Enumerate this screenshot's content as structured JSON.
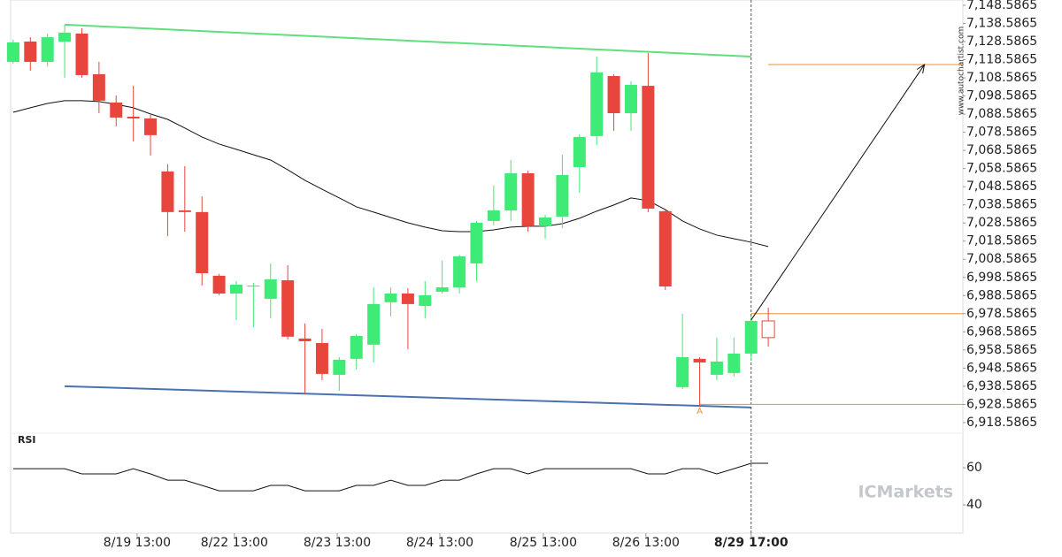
{
  "chart_data": [
    {
      "type": "candlestick",
      "x": [
        0,
        1,
        2,
        3,
        4,
        5,
        6,
        7,
        8,
        9,
        10,
        11,
        12,
        13,
        14,
        15,
        16,
        17,
        18,
        19,
        20,
        21,
        22,
        23,
        24,
        25,
        26,
        27,
        28,
        29,
        30,
        31,
        32,
        33,
        34,
        35,
        36,
        37,
        38,
        39,
        40,
        41,
        42,
        43,
        44
      ],
      "open": [
        7117.4,
        7128.6,
        7117.4,
        7128.6,
        7133.0,
        7110.6,
        7095.0,
        7087.2,
        7086.2,
        7057.0,
        7035.5,
        7034.6,
        6999.5,
        6989.7,
        6993.6,
        6986.8,
        6997.0,
        6964.9,
        6962.4,
        6944.9,
        6953.7,
        6961.5,
        6984.9,
        6989.7,
        6982.9,
        6990.7,
        6993.1,
        7006.3,
        7029.7,
        7035.5,
        7056.0,
        7026.8,
        7032.1,
        7059.4,
        7076.5,
        7109.6,
        7089.1,
        7104.2,
        7035.1,
        6938.1,
        6953.7,
        6944.9,
        6945.9,
        6956.6,
        6974.6
      ],
      "high": [
        7129.6,
        7131.0,
        7133.0,
        7137.9,
        7135.9,
        7117.4,
        7098.9,
        7104.2,
        7088.2,
        7060.9,
        7059.9,
        7043.3,
        7000.5,
        6996.6,
        6995.6,
        7006.3,
        7005.3,
        6973.2,
        6970.2,
        6954.6,
        6967.3,
        6993.1,
        6993.1,
        6992.7,
        6996.6,
        7007.8,
        7011.2,
        7029.7,
        7049.2,
        7063.3,
        7057.5,
        7033.1,
        7066.2,
        7077.4,
        7120.3,
        7110.6,
        7106.7,
        7122.3,
        7036.5,
        6978.5,
        6954.6,
        6965.4,
        6965.4,
        6977.1,
        6981.9
      ],
      "low": [
        7116.4,
        7112.5,
        7115.0,
        7108.6,
        7108.6,
        7089.1,
        7081.8,
        7073.5,
        7065.8,
        7021.4,
        7023.8,
        6994.1,
        6988.8,
        6975.1,
        6971.2,
        6976.1,
        6964.4,
        6934.7,
        6942.0,
        6936.1,
        6947.8,
        6951.7,
        6977.1,
        6959.0,
        6976.1,
        6989.7,
        6989.7,
        6996.6,
        7027.3,
        7029.7,
        7023.8,
        7019.9,
        7025.8,
        7045.3,
        7071.6,
        7079.4,
        7079.4,
        7034.6,
        6991.7,
        6937.1,
        6927.4,
        6942.0,
        6943.9,
        6952.7,
        6960.5
      ],
      "close": [
        7128.1,
        7117.4,
        7131.0,
        7133.5,
        7110.1,
        7096.0,
        7086.7,
        7086.2,
        7077.0,
        7034.6,
        7034.6,
        7000.9,
        6989.7,
        6994.6,
        6994.1,
        6997.5,
        6965.9,
        6963.4,
        6945.4,
        6953.2,
        6966.3,
        6983.9,
        6989.7,
        6983.9,
        6988.8,
        6993.1,
        7010.2,
        7028.7,
        7035.5,
        7056.0,
        7026.8,
        7031.6,
        7055.0,
        7076.0,
        7111.6,
        7089.1,
        7104.7,
        7036.5,
        6993.6,
        6954.6,
        6951.7,
        6952.2,
        6956.6,
        6974.6,
        6965.4
      ],
      "up_color": "#3deb76",
      "down_color": "#e8463c",
      "last_hollow": true,
      "ma": {
        "color": "#111111",
        "values": [
          7089.6,
          7092.1,
          7094.5,
          7096.0,
          7096.0,
          7095.5,
          7094.0,
          7092.1,
          7088.7,
          7085.7,
          7080.9,
          7076.0,
          7072.1,
          7069.2,
          7066.2,
          7063.3,
          7057.9,
          7052.1,
          7047.2,
          7042.4,
          7037.5,
          7034.6,
          7031.6,
          7028.7,
          7026.3,
          7024.3,
          7023.8,
          7023.8,
          7024.8,
          7026.3,
          7026.8,
          7026.8,
          7028.2,
          7031.2,
          7035.1,
          7038.5,
          7042.4,
          7040.9,
          7036.0,
          7029.7,
          7025.3,
          7021.9,
          7019.9,
          7018.0,
          7015.6
        ]
      },
      "lines": [
        {
          "color": "#5fe07d",
          "x": [
            3,
            43
          ],
          "values": [
            7137.9,
            7120.3
          ]
        },
        {
          "color": "#4a72b0",
          "x": [
            3,
            43
          ],
          "values": [
            6938.6,
            6926.9
          ]
        }
      ],
      "arrow": {
        "color": "#111111",
        "x": [
          43,
          53.1
        ],
        "values": [
          6975.1,
          7115.9
        ]
      },
      "levels": [
        {
          "color": "#e8923c",
          "x": [
            43,
            55.34
          ],
          "value": 6978.5865
        },
        {
          "color": "#e8923c",
          "x": [
            44,
            55.34
          ],
          "value": 7115.9
        },
        {
          "color": "#e8923c",
          "x": [
            40,
            55.34
          ],
          "value": 6928.5865
        }
      ],
      "vline": 43,
      "annotation": {
        "text": "A",
        "x": 40,
        "value": 6925.0
      },
      "watermark": "www.autochartist.com",
      "logo": "ICMarkets",
      "xlim": [
        -0.15,
        55.34
      ],
      "xticks": [
        {
          "value": 7.22,
          "label": "8/19 13:00"
        },
        {
          "value": 12.89,
          "label": "8/22 13:00"
        },
        {
          "value": 18.88,
          "label": "8/23 13:00"
        },
        {
          "value": 24.86,
          "label": "8/24 13:00"
        },
        {
          "value": 30.89,
          "label": "8/25 13:00"
        },
        {
          "value": 36.87,
          "label": "8/26 13:00"
        },
        {
          "value": 43,
          "label": "8/29 17:00"
        }
      ],
      "ylim": [
        6912.7,
        7151.5
      ],
      "yticks": [
        {
          "value": 7148.5865,
          "label": "7,148.5865"
        },
        {
          "value": 7138.5865,
          "label": "7,138.5865"
        },
        {
          "value": 7128.5865,
          "label": "7,128.5865"
        },
        {
          "value": 7118.5865,
          "label": "7,118.5865"
        },
        {
          "value": 7108.5865,
          "label": "7,108.5865"
        },
        {
          "value": 7098.5865,
          "label": "7,098.5865"
        },
        {
          "value": 7088.5865,
          "label": "7,088.5865"
        },
        {
          "value": 7078.5865,
          "label": "7,078.5865"
        },
        {
          "value": 7068.5865,
          "label": "7,068.5865"
        },
        {
          "value": 7058.5865,
          "label": "7,058.5865"
        },
        {
          "value": 7048.5865,
          "label": "7,048.5865"
        },
        {
          "value": 7038.5865,
          "label": "7,038.5865"
        },
        {
          "value": 7028.5865,
          "label": "7,028.5865"
        },
        {
          "value": 7018.5865,
          "label": "7,018.5865"
        },
        {
          "value": 7008.5865,
          "label": "7,008.5865"
        },
        {
          "value": 6998.5865,
          "label": "6,998.5865"
        },
        {
          "value": 6988.5865,
          "label": "6,988.5865"
        },
        {
          "value": 6978.5865,
          "label": "6,978.5865"
        },
        {
          "value": 6968.5865,
          "label": "6,968.5865"
        },
        {
          "value": 6958.5865,
          "label": "6,958.5865"
        },
        {
          "value": 6948.5865,
          "label": "6,948.5865"
        },
        {
          "value": 6938.5865,
          "label": "6,938.5865"
        },
        {
          "value": 6928.5865,
          "label": "6,928.5865"
        },
        {
          "value": 6918.5865,
          "label": "6,918.5865"
        }
      ]
    },
    {
      "type": "line",
      "title": "RSI",
      "color": "#111111",
      "values": [
        59.5,
        59.5,
        59.5,
        59.5,
        56.7,
        56.7,
        56.7,
        59.5,
        56.7,
        53.3,
        53.3,
        50.5,
        47.6,
        47.6,
        47.6,
        50.5,
        50.5,
        47.6,
        47.6,
        47.6,
        50.5,
        50.5,
        53.3,
        50.5,
        50.5,
        53.3,
        53.3,
        56.7,
        59.5,
        59.5,
        56.7,
        59.5,
        59.5,
        59.5,
        59.5,
        59.5,
        59.5,
        56.7,
        56.7,
        59.5,
        59.5,
        56.7,
        59.5,
        62.4,
        62.4
      ],
      "ylim": [
        24.8,
        78.6
      ],
      "yticks": [
        60,
        40
      ]
    }
  ]
}
